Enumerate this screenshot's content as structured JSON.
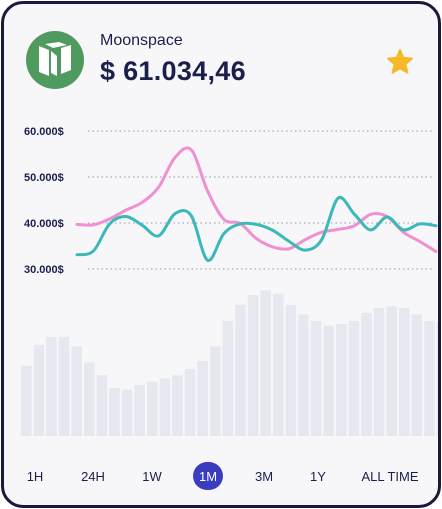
{
  "header": {
    "coin_name": "Moonspace",
    "price": "$ 61.034,46",
    "logo_icon": "neo-logo-icon",
    "favorite_icon": "star-icon"
  },
  "colors": {
    "accent": "#3b3dbf",
    "pink_series": "#f08fd2",
    "teal_series": "#3cb8b8",
    "volume_bars": "#e6e8ef",
    "text": "#1b1f4b",
    "star": "#f7b928",
    "logo_bg": "#4f9a5e"
  },
  "chart_data": {
    "type": "line",
    "yticks": [
      "60.000$",
      "50.000$",
      "40.000$",
      "30.000$"
    ],
    "ytick_values": [
      60000,
      50000,
      40000,
      30000
    ],
    "ylim": [
      30000,
      60000
    ],
    "grid": true,
    "series": [
      {
        "color": "#f08fd2",
        "values": [
          39700,
          39600,
          40900,
          42800,
          44500,
          47800,
          54200,
          55900,
          47000,
          40800,
          39900,
          36600,
          34800,
          34400,
          36400,
          38000,
          38600,
          39400,
          41900,
          41400,
          38000,
          36000,
          33800
        ]
      },
      {
        "color": "#3cb8b8",
        "values": [
          33100,
          33900,
          39800,
          41400,
          39500,
          37200,
          42000,
          41600,
          31900,
          37700,
          39800,
          39700,
          38400,
          36000,
          34100,
          36400,
          45400,
          41900,
          38500,
          41300,
          38500,
          39800,
          39400
        ]
      }
    ],
    "volume": [
      0.44,
      0.57,
      0.62,
      0.62,
      0.56,
      0.46,
      0.38,
      0.3,
      0.29,
      0.32,
      0.34,
      0.36,
      0.38,
      0.42,
      0.47,
      0.56,
      0.72,
      0.82,
      0.88,
      0.91,
      0.89,
      0.82,
      0.76,
      0.72,
      0.69,
      0.7,
      0.72,
      0.77,
      0.8,
      0.81,
      0.8,
      0.76,
      0.72,
      0.71
    ]
  },
  "time_tabs": [
    "1H",
    "24H",
    "1W",
    "1M",
    "3M",
    "1Y",
    "ALL TIME"
  ],
  "active_tab": "1M"
}
